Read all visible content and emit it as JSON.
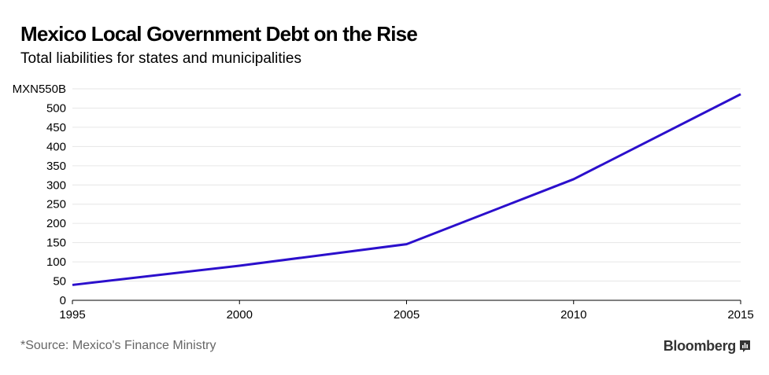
{
  "title": "Mexico Local Government Debt on the Rise",
  "subtitle": "Total liabilities for states and municipalities",
  "source": "*Source: Mexico's Finance Ministry",
  "brand": {
    "name": "Bloomberg",
    "icon": "bloomberg-chart-icon"
  },
  "colors": {
    "line": "#2b0fcc",
    "grid": "#e6e6e6",
    "axis": "#000000"
  },
  "chart_data": {
    "type": "line",
    "title": "Mexico Local Government Debt on the Rise",
    "subtitle": "Total liabilities for states and municipalities",
    "xlabel": "",
    "ylabel": "",
    "x": [
      1995,
      2000,
      2005,
      2010,
      2015
    ],
    "series": [
      {
        "values": [
          40,
          90,
          146,
          315,
          536
        ]
      }
    ],
    "xlim": [
      1995,
      2015
    ],
    "ylim": [
      0,
      550
    ],
    "yticks": [
      0,
      50,
      100,
      150,
      200,
      250,
      300,
      350,
      400,
      450,
      500,
      550
    ],
    "ytick_labels": [
      "0",
      "50",
      "100",
      "150",
      "200",
      "250",
      "300",
      "350",
      "400",
      "450",
      "500",
      "MXN550B"
    ],
    "xticks": [
      1995,
      2000,
      2005,
      2010,
      2015
    ],
    "xtick_labels": [
      "1995",
      "2000",
      "2005",
      "2010",
      "2015"
    ],
    "grid": true,
    "legend": "none"
  }
}
